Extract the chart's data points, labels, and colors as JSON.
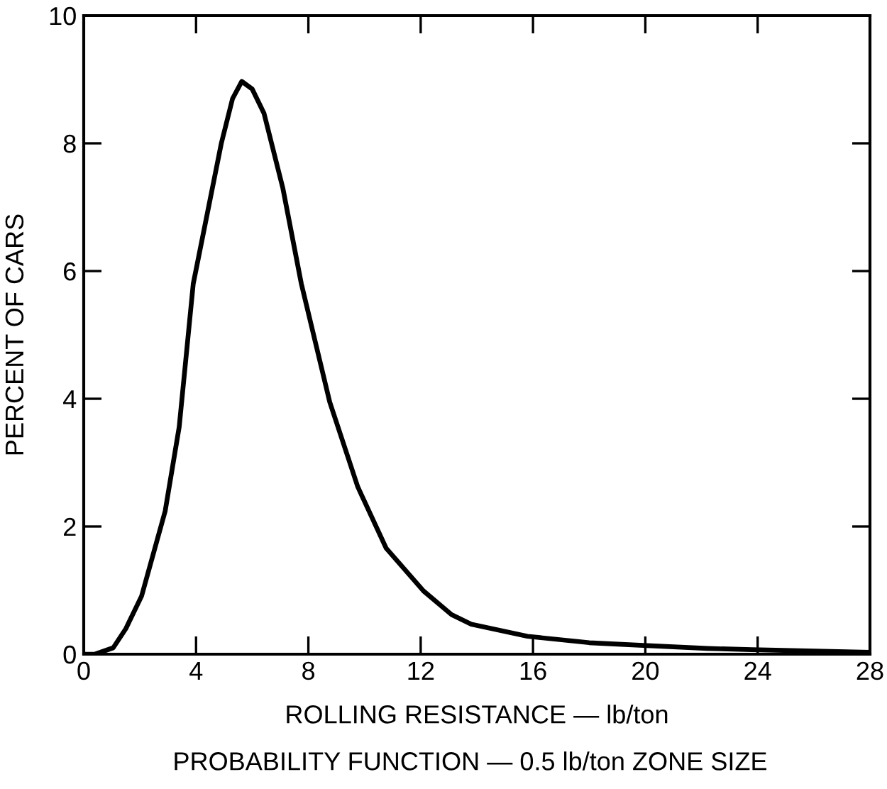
{
  "chart_data": {
    "type": "line",
    "xlabel": "ROLLING RESISTANCE — lb/ton",
    "ylabel": "PERCENT OF CARS",
    "annotations": [
      "PROBABILITY FUNCTION — 0.5 lb/ton ZONE SIZE"
    ],
    "x": [
      0,
      0.4,
      1.05,
      1.5,
      2.06,
      2.9,
      3.4,
      3.9,
      4.4,
      4.9,
      5.3,
      5.63,
      6.0,
      6.42,
      7.09,
      7.75,
      8.76,
      9.76,
      10.77,
      12.1,
      13.1,
      13.8,
      15.8,
      18.0,
      19.8,
      22.2,
      23.8,
      27.9
    ],
    "series": [
      {
        "color": "#000000",
        "values": [
          0,
          0,
          0.1,
          0.4,
          0.91,
          2.24,
          3.56,
          5.8,
          6.9,
          8.0,
          8.7,
          8.97,
          8.85,
          8.47,
          7.3,
          5.8,
          3.95,
          2.62,
          1.66,
          0.99,
          0.62,
          0.47,
          0.28,
          0.18,
          0.14,
          0.09,
          0.07,
          0.03
        ]
      }
    ],
    "xlim": [
      0,
      28
    ],
    "xticks": [
      0,
      4,
      8,
      12,
      16,
      20,
      24,
      28
    ],
    "ylim": [
      0,
      10
    ],
    "yticks": [
      0,
      2,
      4,
      6,
      8,
      10
    ],
    "grid": false,
    "legend": false,
    "marker": "none",
    "line_style": "solid"
  }
}
